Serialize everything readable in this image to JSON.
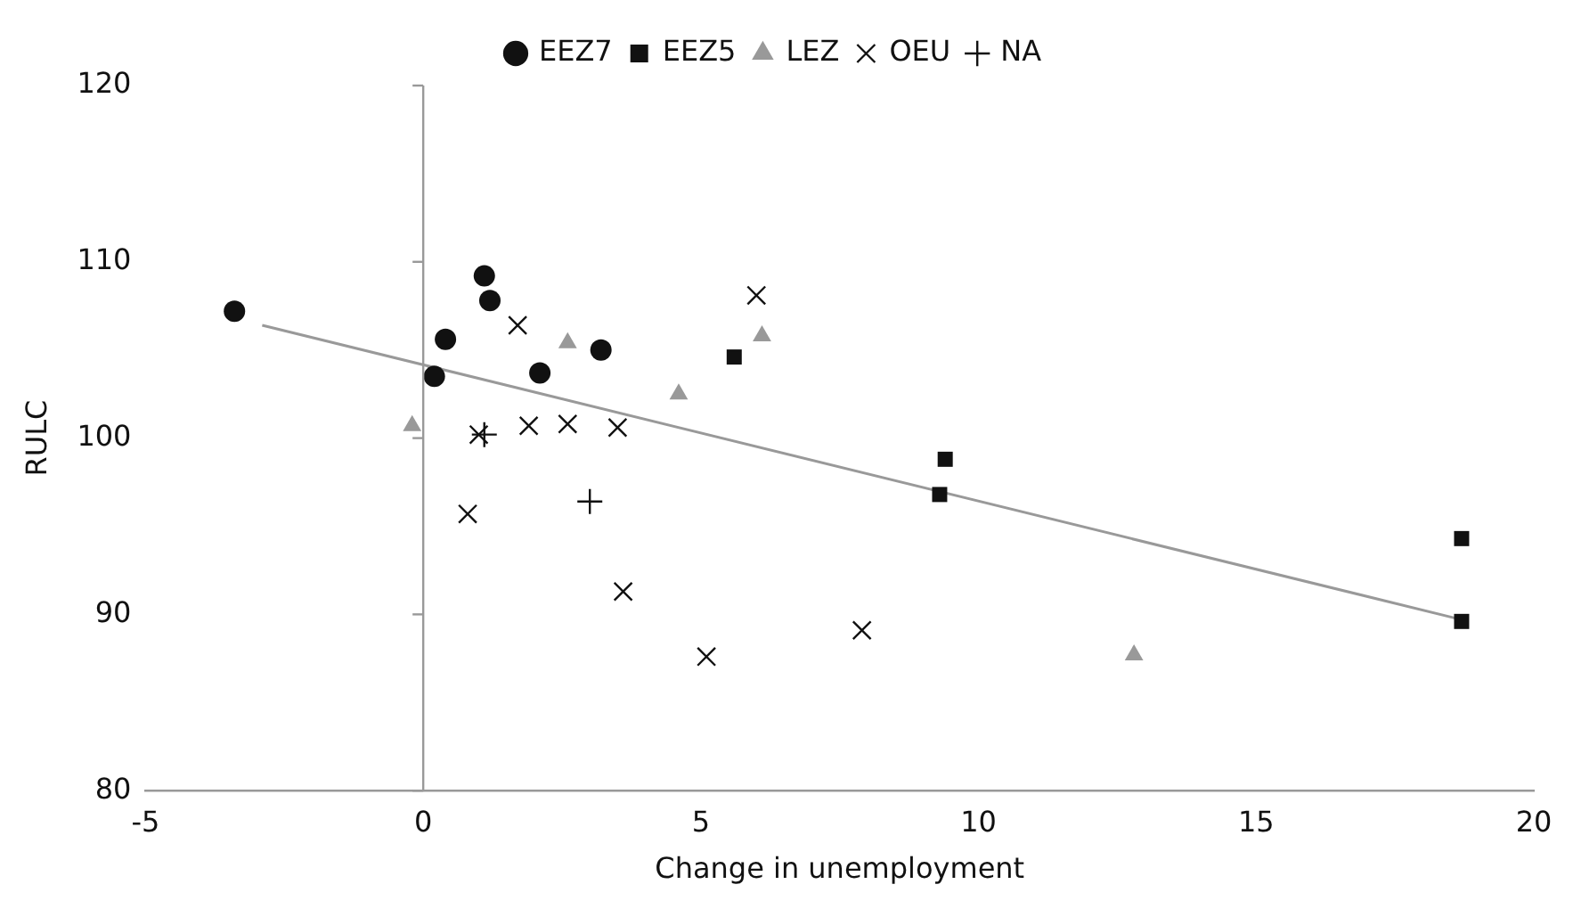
{
  "chart_data": {
    "type": "scatter",
    "xlabel": "Change in unemployment",
    "ylabel": "RULC",
    "xlim": [
      -5,
      20
    ],
    "xticks": [
      -5,
      0,
      5,
      10,
      15,
      20
    ],
    "ylim": [
      80,
      120
    ],
    "yticks": [
      80,
      90,
      100,
      110,
      120
    ],
    "grid": false,
    "legend": "top",
    "ref_lines": [
      {
        "axis": "x",
        "value": 0,
        "color": "#999999"
      }
    ],
    "series": [
      {
        "name": "EEZ7",
        "color": "#111111",
        "marker": "circle",
        "x": [
          -3.4,
          0.2,
          0.4,
          1.1,
          1.2,
          2.1,
          3.2
        ],
        "values": [
          107.2,
          103.5,
          105.6,
          109.2,
          107.8,
          103.7,
          105.0
        ]
      },
      {
        "name": "EEZ5",
        "color": "#111111",
        "marker": "square",
        "x": [
          5.6,
          9.4,
          9.3,
          18.7,
          18.7
        ],
        "values": [
          104.6,
          98.8,
          96.8,
          94.3,
          89.6
        ]
      },
      {
        "name": "LEZ",
        "color": "#999999",
        "marker": "triangle",
        "x": [
          -0.2,
          2.6,
          4.6,
          6.1,
          12.8
        ],
        "values": [
          100.7,
          105.4,
          102.5,
          105.8,
          87.7
        ]
      },
      {
        "name": "OEU",
        "color": "#111111",
        "marker": "cross",
        "x": [
          1.7,
          1.0,
          1.9,
          2.6,
          3.5,
          0.8,
          3.6,
          5.1,
          7.9,
          6.0
        ],
        "values": [
          106.4,
          100.2,
          100.7,
          100.8,
          100.6,
          95.7,
          91.3,
          87.6,
          89.1,
          108.1
        ]
      },
      {
        "name": "NA",
        "color": "#111111",
        "marker": "plus",
        "x": [
          1.1,
          3.0
        ],
        "values": [
          100.2,
          96.4
        ]
      },
      {
        "type": "line",
        "color": "#999999",
        "marker": "none",
        "x": [
          -2.9,
          18.7
        ],
        "values": [
          106.4,
          89.7
        ]
      }
    ]
  }
}
